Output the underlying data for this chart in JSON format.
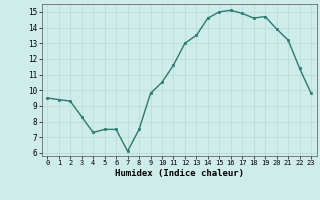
{
  "x": [
    0,
    1,
    2,
    3,
    4,
    5,
    6,
    7,
    8,
    9,
    10,
    11,
    12,
    13,
    14,
    15,
    16,
    17,
    18,
    19,
    20,
    21,
    22,
    23
  ],
  "y": [
    9.5,
    9.4,
    9.3,
    8.3,
    7.3,
    7.5,
    7.5,
    6.1,
    7.5,
    9.8,
    10.5,
    11.6,
    13.0,
    13.5,
    14.6,
    15.0,
    15.1,
    14.9,
    14.6,
    14.7,
    13.9,
    13.2,
    11.4,
    9.8
  ],
  "xlabel": "Humidex (Indice chaleur)",
  "ylim": [
    5.8,
    15.5
  ],
  "xlim": [
    -0.5,
    23.5
  ],
  "yticks": [
    6,
    7,
    8,
    9,
    10,
    11,
    12,
    13,
    14,
    15
  ],
  "xticks": [
    0,
    1,
    2,
    3,
    4,
    5,
    6,
    7,
    8,
    9,
    10,
    11,
    12,
    13,
    14,
    15,
    16,
    17,
    18,
    19,
    20,
    21,
    22,
    23
  ],
  "line_color": "#2d7a6e",
  "marker_color": "#2d7a6e",
  "bg_color": "#ceecea",
  "grid_color": "#b8dbd8",
  "fig_bg": "#ceecea"
}
